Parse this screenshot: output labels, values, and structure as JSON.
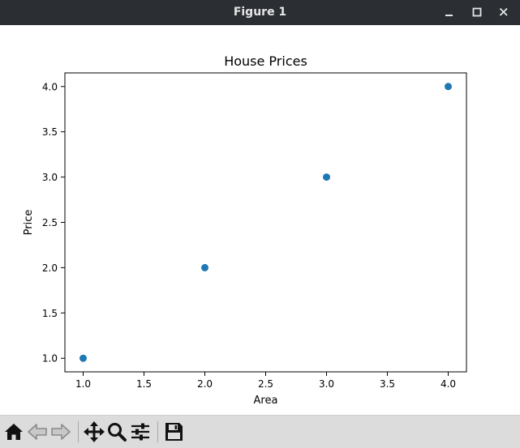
{
  "window": {
    "title": "Figure 1"
  },
  "window_controls": [
    {
      "name": "minimize-icon"
    },
    {
      "name": "maximize-icon"
    },
    {
      "name": "close-icon"
    }
  ],
  "toolbar": {
    "buttons": [
      {
        "name": "home-icon"
      },
      {
        "name": "back-arrow-icon"
      },
      {
        "name": "forward-arrow-icon"
      },
      {
        "name": "pan-move-icon"
      },
      {
        "name": "zoom-magnifier-icon"
      },
      {
        "name": "configure-subplots-icon"
      },
      {
        "name": "save-floppy-icon"
      }
    ]
  },
  "colors": {
    "marker": "#1f77b4",
    "titlebar": "#2b2f33",
    "toolbar": "#dcdcdc"
  },
  "chart_data": {
    "type": "scatter",
    "title": "House Prices",
    "xlabel": "Area",
    "ylabel": "Price",
    "x": [
      1.0,
      2.0,
      3.0,
      4.0
    ],
    "y": [
      1.0,
      2.0,
      3.0,
      4.0
    ],
    "xlim": [
      0.85,
      4.15
    ],
    "ylim": [
      0.85,
      4.15
    ],
    "xticks": [
      1.0,
      1.5,
      2.0,
      2.5,
      3.0,
      3.5,
      4.0
    ],
    "xtick_labels": [
      "1.0",
      "1.5",
      "2.0",
      "2.5",
      "3.0",
      "3.5",
      "4.0"
    ],
    "yticks": [
      1.0,
      1.5,
      2.0,
      2.5,
      3.0,
      3.5,
      4.0
    ],
    "ytick_labels": [
      "1.0",
      "1.5",
      "2.0",
      "2.5",
      "3.0",
      "3.5",
      "4.0"
    ],
    "grid": false,
    "marker_color": "#1f77b4"
  }
}
